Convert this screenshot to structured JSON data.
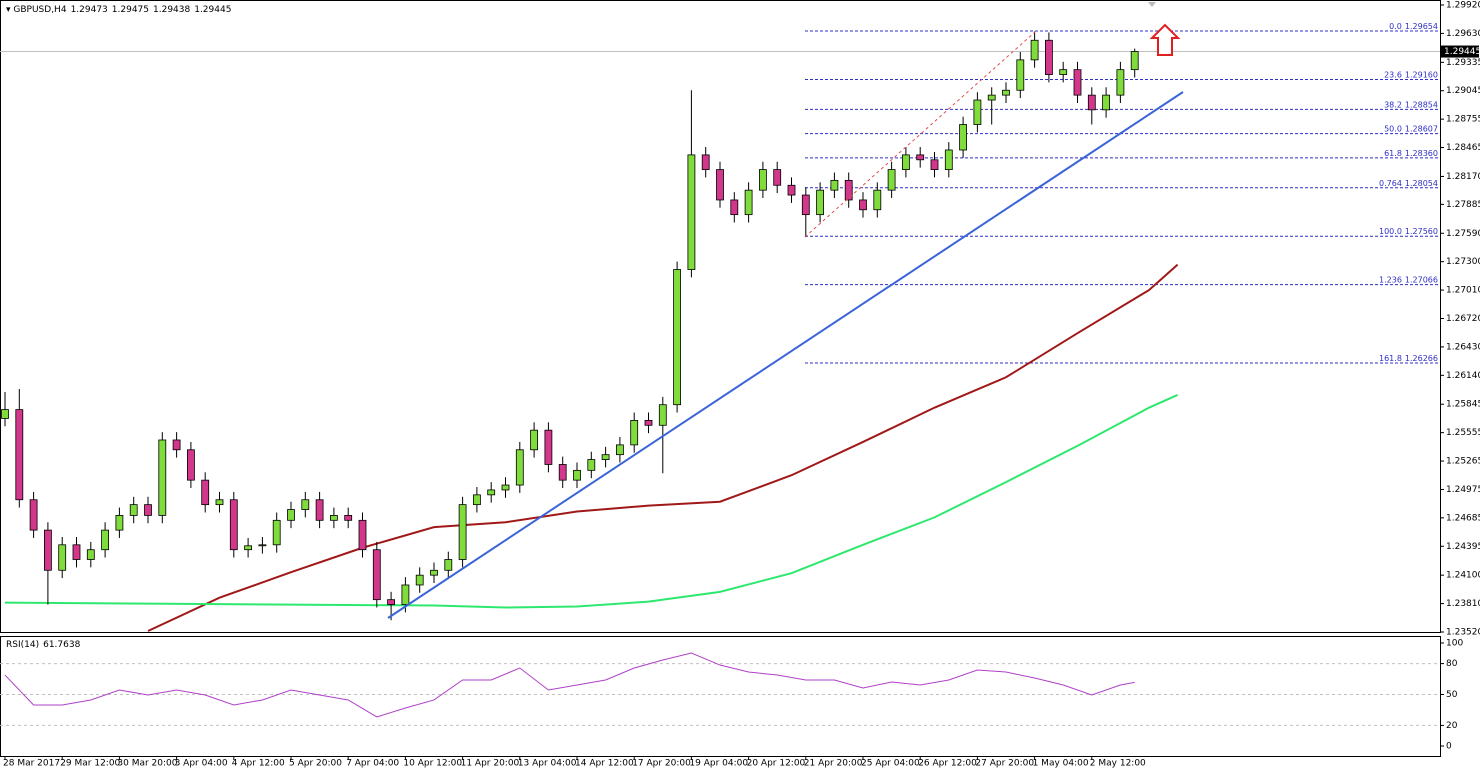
{
  "chart_data": {
    "type": "candlestick",
    "title": "GBPUSD,H4",
    "ohlc": [
      1.29473,
      1.29475,
      1.29438,
      1.29445
    ],
    "candles": [
      [
        1.257,
        1.2597,
        1.2562,
        1.2579
      ],
      [
        1.2579,
        1.26,
        1.2479,
        1.2487
      ],
      [
        1.2487,
        1.2495,
        1.2448,
        1.2456
      ],
      [
        1.2456,
        1.2464,
        1.238,
        1.2415
      ],
      [
        1.2415,
        1.2449,
        1.2407,
        1.2441
      ],
      [
        1.2441,
        1.2449,
        1.2418,
        1.2426
      ],
      [
        1.2426,
        1.2444,
        1.2418,
        1.2436
      ],
      [
        1.2436,
        1.2464,
        1.2428,
        1.2456
      ],
      [
        1.2456,
        1.2479,
        1.2448,
        1.2471
      ],
      [
        1.2471,
        1.249,
        1.2463,
        1.2482
      ],
      [
        1.2482,
        1.249,
        1.2463,
        1.2471
      ],
      [
        1.2471,
        1.2556,
        1.2463,
        1.2548
      ],
      [
        1.2548,
        1.2556,
        1.253,
        1.2538
      ],
      [
        1.2538,
        1.2546,
        1.2499,
        1.2507
      ],
      [
        1.2507,
        1.2515,
        1.2474,
        1.2482
      ],
      [
        1.2482,
        1.2495,
        1.2474,
        1.2487
      ],
      [
        1.2487,
        1.2495,
        1.2428,
        1.2436
      ],
      [
        1.2436,
        1.2448,
        1.2428,
        1.244
      ],
      [
        1.244,
        1.2449,
        1.2432,
        1.2441
      ],
      [
        1.2441,
        1.2474,
        1.2433,
        1.2466
      ],
      [
        1.2466,
        1.2485,
        1.2458,
        1.2477
      ],
      [
        1.2477,
        1.2495,
        1.2469,
        1.2487
      ],
      [
        1.2487,
        1.2495,
        1.2458,
        1.2466
      ],
      [
        1.2466,
        1.2479,
        1.2458,
        1.2471
      ],
      [
        1.2471,
        1.2479,
        1.2458,
        1.2466
      ],
      [
        1.2466,
        1.2474,
        1.2428,
        1.2436
      ],
      [
        1.2436,
        1.2444,
        1.2377,
        1.2385
      ],
      [
        1.2385,
        1.2393,
        1.2364,
        1.238
      ],
      [
        1.238,
        1.2408,
        1.2372,
        1.24
      ],
      [
        1.24,
        1.2418,
        1.2392,
        1.241
      ],
      [
        1.241,
        1.2423,
        1.2402,
        1.2415
      ],
      [
        1.2415,
        1.2434,
        1.2407,
        1.2426
      ],
      [
        1.2426,
        1.249,
        1.2418,
        1.2482
      ],
      [
        1.2482,
        1.25,
        1.2474,
        1.2492
      ],
      [
        1.2492,
        1.2505,
        1.2484,
        1.2497
      ],
      [
        1.2497,
        1.251,
        1.2489,
        1.2502
      ],
      [
        1.2502,
        1.2546,
        1.2494,
        1.2538
      ],
      [
        1.2538,
        1.2566,
        1.253,
        1.2558
      ],
      [
        1.2558,
        1.2566,
        1.2515,
        1.2523
      ],
      [
        1.2523,
        1.2531,
        1.2499,
        1.2507
      ],
      [
        1.2507,
        1.2525,
        1.2499,
        1.2517
      ],
      [
        1.2517,
        1.2536,
        1.2509,
        1.2528
      ],
      [
        1.2528,
        1.2541,
        1.252,
        1.2533
      ],
      [
        1.2533,
        1.2551,
        1.2525,
        1.2543
      ],
      [
        1.2543,
        1.2576,
        1.2535,
        1.2568
      ],
      [
        1.2568,
        1.2576,
        1.2555,
        1.2563
      ],
      [
        1.2563,
        1.2592,
        1.2514,
        1.2584
      ],
      [
        1.2584,
        1.273,
        1.2576,
        1.2722
      ],
      [
        1.2722,
        1.2905,
        1.2714,
        1.2839
      ],
      [
        1.2839,
        1.2847,
        1.2816,
        1.2824
      ],
      [
        1.2824,
        1.2832,
        1.2785,
        1.2793
      ],
      [
        1.2793,
        1.2801,
        1.277,
        1.2778
      ],
      [
        1.2778,
        1.2811,
        1.277,
        1.2803
      ],
      [
        1.2803,
        1.2832,
        1.2795,
        1.2824
      ],
      [
        1.2824,
        1.2832,
        1.28,
        1.2808
      ],
      [
        1.2808,
        1.2816,
        1.279,
        1.2798
      ],
      [
        1.2798,
        1.2806,
        1.2755,
        1.2778
      ],
      [
        1.2778,
        1.2811,
        1.277,
        1.2803
      ],
      [
        1.2803,
        1.2821,
        1.2795,
        1.2813
      ],
      [
        1.2813,
        1.2821,
        1.2785,
        1.2793
      ],
      [
        1.2793,
        1.2801,
        1.2775,
        1.2783
      ],
      [
        1.2783,
        1.2811,
        1.2775,
        1.2803
      ],
      [
        1.2803,
        1.2832,
        1.2795,
        1.2824
      ],
      [
        1.2824,
        1.2847,
        1.2816,
        1.2839
      ],
      [
        1.2839,
        1.2847,
        1.2826,
        1.2834
      ],
      [
        1.2834,
        1.2842,
        1.2816,
        1.2824
      ],
      [
        1.2824,
        1.2852,
        1.2816,
        1.2844
      ],
      [
        1.2844,
        1.2878,
        1.2836,
        1.287
      ],
      [
        1.287,
        1.2903,
        1.2862,
        1.2895
      ],
      [
        1.2895,
        1.2908,
        1.287,
        1.29
      ],
      [
        1.29,
        1.2913,
        1.2892,
        1.2905
      ],
      [
        1.2905,
        1.2944,
        1.2897,
        1.2936
      ],
      [
        1.2936,
        1.2965,
        1.2928,
        1.2956
      ],
      [
        1.2956,
        1.2964,
        1.2913,
        1.2921
      ],
      [
        1.2921,
        1.2934,
        1.2913,
        1.2926
      ],
      [
        1.2926,
        1.2934,
        1.2892,
        1.29
      ],
      [
        1.29,
        1.2908,
        1.287,
        1.2885
      ],
      [
        1.2885,
        1.2908,
        1.2877,
        1.29
      ],
      [
        1.29,
        1.2934,
        1.2892,
        1.2926
      ],
      [
        1.2926,
        1.29475,
        1.2918,
        1.29445
      ]
    ],
    "up_color": "#7fdc3c",
    "down_color": "#d2378c",
    "x_labels": [
      "28 Mar 2017",
      "29 Mar 12:00",
      "30 Mar 20:00",
      "3 Apr 04:00",
      "4 Apr 12:00",
      "5 Apr 20:00",
      "7 Apr 04:00",
      "10 Apr 12:00",
      "11 Apr 20:00",
      "13 Apr 04:00",
      "14 Apr 12:00",
      "17 Apr 20:00",
      "19 Apr 04:00",
      "20 Apr 12:00",
      "21 Apr 20:00",
      "25 Apr 04:00",
      "26 Apr 12:00",
      "27 Apr 20:00",
      "1 May 04:00",
      "2 May 12:00"
    ],
    "ylim": [
      1.2352,
      1.2992
    ],
    "yticks": [
      {
        "value": 1.2992,
        "label": "1.29920"
      },
      {
        "value": 1.2963,
        "label": "1.29630"
      },
      {
        "value": 1.29335,
        "label": "1.29335"
      },
      {
        "value": 1.29045,
        "label": "1.29045"
      },
      {
        "value": 1.28755,
        "label": "1.28755"
      },
      {
        "value": 1.28465,
        "label": "1.28465"
      },
      {
        "value": 1.2817,
        "label": "1.28170"
      },
      {
        "value": 1.27885,
        "label": "1.27885"
      },
      {
        "value": 1.2759,
        "label": "1.27590"
      },
      {
        "value": 1.273,
        "label": "1.27300"
      },
      {
        "value": 1.2701,
        "label": "1.27010"
      },
      {
        "value": 1.2672,
        "label": "1.26720"
      },
      {
        "value": 1.2643,
        "label": "1.26430"
      },
      {
        "value": 1.2614,
        "label": "1.26140"
      },
      {
        "value": 1.25845,
        "label": "1.25845"
      },
      {
        "value": 1.25555,
        "label": "1.25555"
      },
      {
        "value": 1.25265,
        "label": "1.25265"
      },
      {
        "value": 1.24975,
        "label": "1.24975"
      },
      {
        "value": 1.24685,
        "label": "1.24685"
      },
      {
        "value": 1.24395,
        "label": "1.24395"
      },
      {
        "value": 1.241,
        "label": "1.24100"
      },
      {
        "value": 1.2381,
        "label": "1.23810"
      },
      {
        "value": 1.2352,
        "label": "1.23520"
      }
    ],
    "fibonacci": [
      {
        "ratio": "0.0",
        "price": 1.29654,
        "price_label": "1.29654"
      },
      {
        "ratio": "23.6",
        "price": 1.2916,
        "price_label": "1.29160"
      },
      {
        "ratio": "38.2",
        "price": 1.28854,
        "price_label": "1.28854"
      },
      {
        "ratio": "50.0",
        "price": 1.28607,
        "price_label": "1.28607"
      },
      {
        "ratio": "61.8",
        "price": 1.2836,
        "price_label": "1.28360"
      },
      {
        "ratio": "0.764",
        "price": 1.28054,
        "price_label": "1.28054"
      },
      {
        "ratio": "100.0",
        "price": 1.2756,
        "price_label": "1.27560"
      },
      {
        "ratio": "1.236",
        "price": 1.27066,
        "price_label": "1.27066"
      },
      {
        "ratio": "161.8",
        "price": 1.26266,
        "price_label": "1.26266"
      }
    ],
    "fib_color": "#2f2fc8",
    "moving_averages": [
      {
        "color": "#a01818",
        "x": [
          10,
          15,
          20,
          25,
          30,
          35,
          40,
          45,
          50,
          55,
          60,
          65,
          70,
          75,
          80,
          82
        ],
        "values": [
          1.2353,
          1.2387,
          1.2413,
          1.2438,
          1.2459,
          1.2464,
          1.2475,
          1.2481,
          1.2485,
          1.2512,
          1.2546,
          1.2581,
          1.2612,
          1.2657,
          1.2701,
          1.2727
        ]
      },
      {
        "color": "#2ee86e",
        "x": [
          0,
          10,
          20,
          30,
          35,
          40,
          45,
          50,
          55,
          60,
          65,
          70,
          75,
          80,
          82
        ],
        "values": [
          1.2382,
          1.2381,
          1.238,
          1.2379,
          1.2377,
          1.2378,
          1.2383,
          1.2393,
          1.2412,
          1.2441,
          1.2469,
          1.2505,
          1.2542,
          1.2581,
          1.2594
        ]
      }
    ],
    "rsi": {
      "name": "RSI(14)",
      "value": 61.7638,
      "color": "#b040c8",
      "x": [
        0,
        2,
        4,
        6,
        8,
        10,
        12,
        14,
        16,
        18,
        20,
        22,
        24,
        26,
        28,
        30,
        32,
        34,
        36,
        38,
        40,
        42,
        44,
        46,
        48,
        50,
        52,
        54,
        56,
        58,
        60,
        62,
        64,
        66,
        68,
        70,
        72,
        74,
        76,
        78,
        79
      ],
      "values": [
        68.9,
        39.8,
        39.8,
        44.7,
        54.4,
        49.5,
        54.4,
        49.5,
        39.8,
        44.7,
        54.4,
        49.5,
        44.7,
        28.2,
        36.9,
        44.7,
        64.1,
        64.1,
        75.7,
        54.4,
        59.2,
        64.1,
        75.7,
        83.5,
        90.3,
        78.6,
        71.8,
        68.9,
        64.1,
        64.1,
        56.3,
        62.1,
        59.2,
        64.1,
        73.8,
        71.8,
        66.0,
        59.2,
        49.5,
        59.2,
        61.8
      ],
      "ylim": [
        0,
        100
      ],
      "yticks": [
        100,
        80,
        50,
        20,
        0
      ],
      "levels": [
        80,
        50,
        20
      ]
    }
  }
}
